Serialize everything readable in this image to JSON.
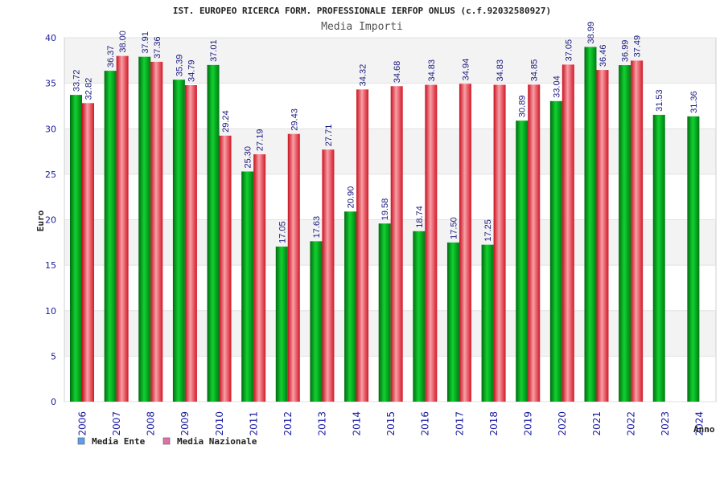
{
  "chart_data": {
    "type": "bar",
    "title": "IST. EUROPEO RICERCA FORM. PROFESSIONALE IERFOP ONLUS (c.f.92032580927)",
    "subtitle": "Media Importi",
    "xlabel": "Anno",
    "ylabel": "Euro",
    "ylim": [
      0,
      40
    ],
    "yticks": [
      "0",
      "5",
      "10",
      "15",
      "20",
      "25",
      "30",
      "35",
      "40"
    ],
    "grid": true,
    "legend_position": "bottom-left",
    "categories": [
      "2006",
      "2007",
      "2008",
      "2009",
      "2010",
      "2011",
      "2012",
      "2013",
      "2014",
      "2015",
      "2016",
      "2017",
      "2018",
      "2019",
      "2020",
      "2021",
      "2022",
      "2023",
      "2024"
    ],
    "series": [
      {
        "name": "Media Ente",
        "color": "#00b020",
        "legend_color": "#5aa0ee",
        "values": [
          33.72,
          36.37,
          37.91,
          35.39,
          37.01,
          25.3,
          17.05,
          17.63,
          20.9,
          19.58,
          18.74,
          17.5,
          17.25,
          30.89,
          33.04,
          38.99,
          36.99,
          31.53,
          31.36
        ],
        "labels": [
          "33.72",
          "36.37",
          "37.91",
          "35.39",
          "37.01",
          "25.30",
          "17.05",
          "17.63",
          "20.90",
          "19.58",
          "18.74",
          "17.50",
          "17.25",
          "30.89",
          "33.04",
          "38.99",
          "36.99",
          "31.53",
          "31.36"
        ]
      },
      {
        "name": "Media Nazionale",
        "color": "#e82030",
        "legend_color": "#e070a8",
        "values": [
          32.82,
          38.0,
          37.36,
          34.79,
          29.24,
          27.19,
          29.43,
          27.71,
          34.32,
          34.68,
          34.83,
          34.94,
          34.83,
          34.85,
          37.05,
          36.46,
          37.49,
          null,
          null
        ],
        "labels": [
          "32.82",
          "38.00",
          "37.36",
          "34.79",
          "29.24",
          "27.19",
          "29.43",
          "27.71",
          "34.32",
          "34.68",
          "34.83",
          "34.94",
          "34.83",
          "34.85",
          "37.05",
          "36.46",
          "37.49",
          "",
          ""
        ]
      }
    ]
  }
}
